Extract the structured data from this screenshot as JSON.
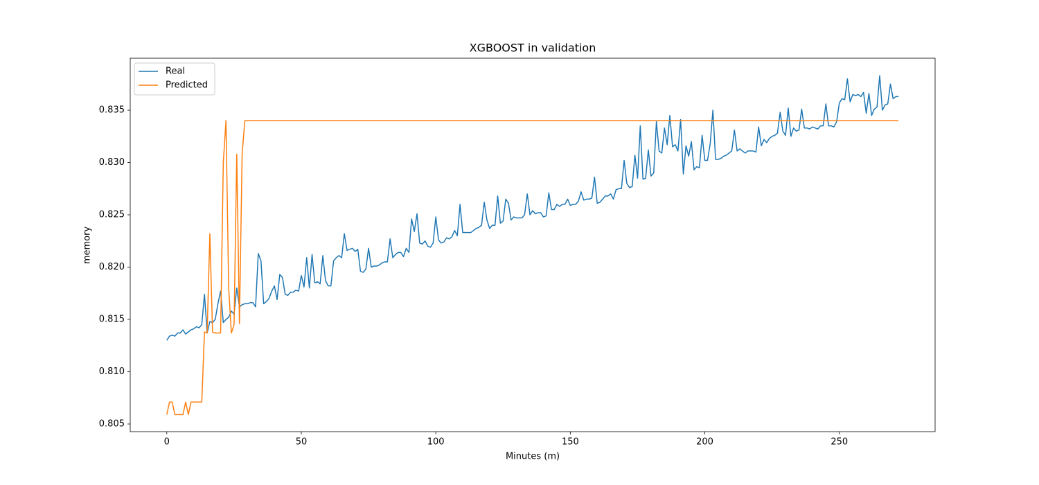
{
  "chart_data": {
    "type": "line",
    "title": "XGBOOST in validation",
    "x_label": "Minutes (m)",
    "y_label": "memory",
    "x": [
      0,
      1,
      2,
      3,
      4,
      5,
      6,
      7,
      8,
      9,
      10,
      11,
      12,
      13,
      14,
      15,
      16,
      17,
      18,
      19,
      20,
      21,
      22,
      23,
      24,
      25,
      26,
      27,
      28,
      29,
      30,
      31,
      32,
      33,
      34,
      35,
      36,
      37,
      38,
      39,
      40,
      41,
      42,
      43,
      44,
      45,
      46,
      47,
      48,
      49,
      50,
      51,
      52,
      53,
      54,
      55,
      56,
      57,
      58,
      59,
      60,
      61,
      62,
      63,
      64,
      65,
      66,
      67,
      68,
      69,
      70,
      71,
      72,
      73,
      74,
      75,
      76,
      77,
      78,
      79,
      80,
      81,
      82,
      83,
      84,
      85,
      86,
      87,
      88,
      89,
      90,
      91,
      92,
      93,
      94,
      95,
      96,
      97,
      98,
      99,
      100,
      101,
      102,
      103,
      104,
      105,
      106,
      107,
      108,
      109,
      110,
      111,
      112,
      113,
      114,
      115,
      116,
      117,
      118,
      119,
      120,
      121,
      122,
      123,
      124,
      125,
      126,
      127,
      128,
      129,
      130,
      131,
      132,
      133,
      134,
      135,
      136,
      137,
      138,
      139,
      140,
      141,
      142,
      143,
      144,
      145,
      146,
      147,
      148,
      149,
      150,
      151,
      152,
      153,
      154,
      155,
      156,
      157,
      158,
      159,
      160,
      161,
      162,
      163,
      164,
      165,
      166,
      167,
      168,
      169,
      170,
      171,
      172,
      173,
      174,
      175,
      176,
      177,
      178,
      179,
      180,
      181,
      182,
      183,
      184,
      185,
      186,
      187,
      188,
      189,
      190,
      191,
      192,
      193,
      194,
      195,
      196,
      197,
      198,
      199,
      200,
      201,
      202,
      203,
      204,
      205,
      206,
      207,
      208,
      209,
      210,
      211,
      212,
      213,
      214,
      215,
      216,
      217,
      218,
      219,
      220,
      221,
      222,
      223,
      224,
      225,
      226,
      227,
      228,
      229,
      230,
      231,
      232,
      233,
      234,
      235,
      236,
      237,
      238,
      239,
      240,
      241,
      242,
      243,
      244,
      245,
      246,
      247,
      248,
      249,
      250,
      251,
      252,
      253,
      254,
      255,
      256,
      257,
      258,
      259,
      260,
      261,
      262,
      263,
      264,
      265,
      266,
      267,
      268,
      269,
      270,
      271,
      272
    ],
    "series": [
      {
        "name": "Real",
        "color": "#1f77b4",
        "values": [
          0.813,
          0.8134,
          0.8135,
          0.8134,
          0.8137,
          0.8137,
          0.814,
          0.8136,
          0.8138,
          0.814,
          0.8141,
          0.8143,
          0.8142,
          0.8145,
          0.8174,
          0.8137,
          0.8148,
          0.8147,
          0.815,
          0.8165,
          0.8177,
          0.8147,
          0.815,
          0.8152,
          0.8158,
          0.8155,
          0.818,
          0.8162,
          0.8164,
          0.8165,
          0.8165,
          0.8166,
          0.8166,
          0.8162,
          0.8213,
          0.8206,
          0.8165,
          0.8167,
          0.817,
          0.8177,
          0.8182,
          0.8169,
          0.8193,
          0.819,
          0.8174,
          0.8173,
          0.8176,
          0.8176,
          0.8178,
          0.8177,
          0.8192,
          0.8181,
          0.8209,
          0.818,
          0.8212,
          0.8185,
          0.8186,
          0.8184,
          0.8211,
          0.8187,
          0.8182,
          0.8182,
          0.8206,
          0.8209,
          0.8211,
          0.8209,
          0.8232,
          0.8216,
          0.8217,
          0.8218,
          0.8215,
          0.8217,
          0.8196,
          0.8195,
          0.8198,
          0.8218,
          0.82,
          0.8201,
          0.8201,
          0.8202,
          0.8204,
          0.8205,
          0.8205,
          0.8227,
          0.8209,
          0.8212,
          0.8214,
          0.8214,
          0.821,
          0.8218,
          0.8214,
          0.8246,
          0.8234,
          0.8251,
          0.8223,
          0.8222,
          0.8225,
          0.822,
          0.8219,
          0.8223,
          0.8248,
          0.8226,
          0.8223,
          0.8224,
          0.8228,
          0.8227,
          0.8229,
          0.8235,
          0.823,
          0.826,
          0.8233,
          0.8233,
          0.8233,
          0.8233,
          0.8235,
          0.8237,
          0.8238,
          0.824,
          0.8262,
          0.8245,
          0.8237,
          0.824,
          0.824,
          0.8268,
          0.8242,
          0.8244,
          0.8265,
          0.8261,
          0.8245,
          0.8248,
          0.8247,
          0.8247,
          0.8247,
          0.825,
          0.827,
          0.825,
          0.8254,
          0.8251,
          0.8252,
          0.8252,
          0.8248,
          0.8249,
          0.8271,
          0.8255,
          0.8255,
          0.826,
          0.8258,
          0.826,
          0.826,
          0.8265,
          0.8259,
          0.826,
          0.826,
          0.8263,
          0.8272,
          0.8264,
          0.8265,
          0.8265,
          0.8266,
          0.8286,
          0.8261,
          0.8262,
          0.8265,
          0.8268,
          0.8268,
          0.827,
          0.8265,
          0.8274,
          0.8275,
          0.8275,
          0.8302,
          0.828,
          0.8276,
          0.8277,
          0.8307,
          0.8285,
          0.8335,
          0.8284,
          0.8285,
          0.8312,
          0.8287,
          0.829,
          0.8339,
          0.8311,
          0.8309,
          0.8333,
          0.8317,
          0.8345,
          0.8315,
          0.8317,
          0.8311,
          0.8341,
          0.8289,
          0.8316,
          0.8306,
          0.832,
          0.8293,
          0.8296,
          0.8295,
          0.8326,
          0.8302,
          0.8302,
          0.8318,
          0.835,
          0.8303,
          0.8303,
          0.8304,
          0.8306,
          0.8307,
          0.8309,
          0.8311,
          0.8331,
          0.8311,
          0.8313,
          0.8311,
          0.8309,
          0.8311,
          0.8311,
          0.8311,
          0.831,
          0.8334,
          0.8316,
          0.8322,
          0.8319,
          0.8323,
          0.8325,
          0.8326,
          0.8328,
          0.8348,
          0.833,
          0.8326,
          0.8352,
          0.8325,
          0.8333,
          0.833,
          0.8331,
          0.8351,
          0.8333,
          0.8333,
          0.8332,
          0.8334,
          0.8333,
          0.8332,
          0.8335,
          0.8335,
          0.8356,
          0.8335,
          0.8335,
          0.8334,
          0.8339,
          0.8357,
          0.8361,
          0.836,
          0.838,
          0.8358,
          0.8365,
          0.8364,
          0.8365,
          0.8363,
          0.8367,
          0.8347,
          0.8366,
          0.8345,
          0.8351,
          0.8353,
          0.8383,
          0.835,
          0.8355,
          0.8356,
          0.8375,
          0.8361,
          0.8363,
          0.8363
        ]
      },
      {
        "name": "Predicted",
        "color": "#ff7f0e",
        "values": [
          0.8059,
          0.8071,
          0.8071,
          0.8059,
          0.8059,
          0.8059,
          0.8059,
          0.8071,
          0.8059,
          0.8071,
          0.8071,
          0.8071,
          0.8071,
          0.8071,
          0.8138,
          0.8137,
          0.8232,
          0.8138,
          0.8137,
          0.8137,
          0.8137,
          0.83,
          0.834,
          0.818,
          0.8137,
          0.8145,
          0.8308,
          0.8146,
          0.8308,
          0.834,
          0.834,
          0.834,
          0.834,
          0.834,
          0.834,
          0.834,
          0.834,
          0.834,
          0.834,
          0.834,
          0.834,
          0.834,
          0.834,
          0.834,
          0.834,
          0.834,
          0.834,
          0.834,
          0.834,
          0.834,
          0.834,
          0.834,
          0.834,
          0.834,
          0.834,
          0.834,
          0.834,
          0.834,
          0.834,
          0.834,
          0.834,
          0.834,
          0.834,
          0.834,
          0.834,
          0.834,
          0.834,
          0.834,
          0.834,
          0.834,
          0.834,
          0.834,
          0.834,
          0.834,
          0.834,
          0.834,
          0.834,
          0.834,
          0.834,
          0.834,
          0.834,
          0.834,
          0.834,
          0.834,
          0.834,
          0.834,
          0.834,
          0.834,
          0.834,
          0.834,
          0.834,
          0.834,
          0.834,
          0.834,
          0.834,
          0.834,
          0.834,
          0.834,
          0.834,
          0.834,
          0.834,
          0.834,
          0.834,
          0.834,
          0.834,
          0.834,
          0.834,
          0.834,
          0.834,
          0.834,
          0.834,
          0.834,
          0.834,
          0.834,
          0.834,
          0.834,
          0.834,
          0.834,
          0.834,
          0.834,
          0.834,
          0.834,
          0.834,
          0.834,
          0.834,
          0.834,
          0.834,
          0.834,
          0.834,
          0.834,
          0.834,
          0.834,
          0.834,
          0.834,
          0.834,
          0.834,
          0.834,
          0.834,
          0.834,
          0.834,
          0.834,
          0.834,
          0.834,
          0.834,
          0.834,
          0.834,
          0.834,
          0.834,
          0.834,
          0.834,
          0.834,
          0.834,
          0.834,
          0.834,
          0.834,
          0.834,
          0.834,
          0.834,
          0.834,
          0.834,
          0.834,
          0.834,
          0.834,
          0.834,
          0.834,
          0.834,
          0.834,
          0.834,
          0.834,
          0.834,
          0.834,
          0.834,
          0.834,
          0.834,
          0.834,
          0.834,
          0.834,
          0.834,
          0.834,
          0.834,
          0.834,
          0.834,
          0.834,
          0.834,
          0.834,
          0.834,
          0.834,
          0.834,
          0.834,
          0.834,
          0.834,
          0.834,
          0.834,
          0.834,
          0.834,
          0.834,
          0.834,
          0.834,
          0.834,
          0.834,
          0.834,
          0.834,
          0.834,
          0.834,
          0.834,
          0.834,
          0.834,
          0.834,
          0.834,
          0.834,
          0.834,
          0.834,
          0.834,
          0.834,
          0.834,
          0.834,
          0.834,
          0.834,
          0.834,
          0.834,
          0.834,
          0.834,
          0.834,
          0.834,
          0.834,
          0.834,
          0.834,
          0.834,
          0.834,
          0.834,
          0.834,
          0.834,
          0.834,
          0.834,
          0.834,
          0.834,
          0.834,
          0.834,
          0.834,
          0.834,
          0.834,
          0.834,
          0.834,
          0.834,
          0.834,
          0.834,
          0.834,
          0.834,
          0.834,
          0.834,
          0.834,
          0.834,
          0.834,
          0.834,
          0.834,
          0.834,
          0.834,
          0.834,
          0.834,
          0.834,
          0.834,
          0.834,
          0.834,
          0.834,
          0.834,
          0.834,
          0.834,
          0.834,
          0.834,
          0.834,
          0.834,
          0.834,
          0.834
        ]
      }
    ],
    "xlim": [
      -13.6,
      285.6
    ],
    "ylim": [
      0.80427,
      0.83997
    ],
    "xticks": [
      0,
      50,
      100,
      150,
      200,
      250
    ],
    "yticks": [
      0.805,
      {
        "value": 0.81,
        "label": "0.810"
      },
      0.815,
      {
        "value": 0.82,
        "label": "0.820"
      },
      0.825,
      {
        "value": 0.83,
        "label": "0.830"
      },
      0.835
    ],
    "grid": false,
    "legend": "upper left"
  }
}
